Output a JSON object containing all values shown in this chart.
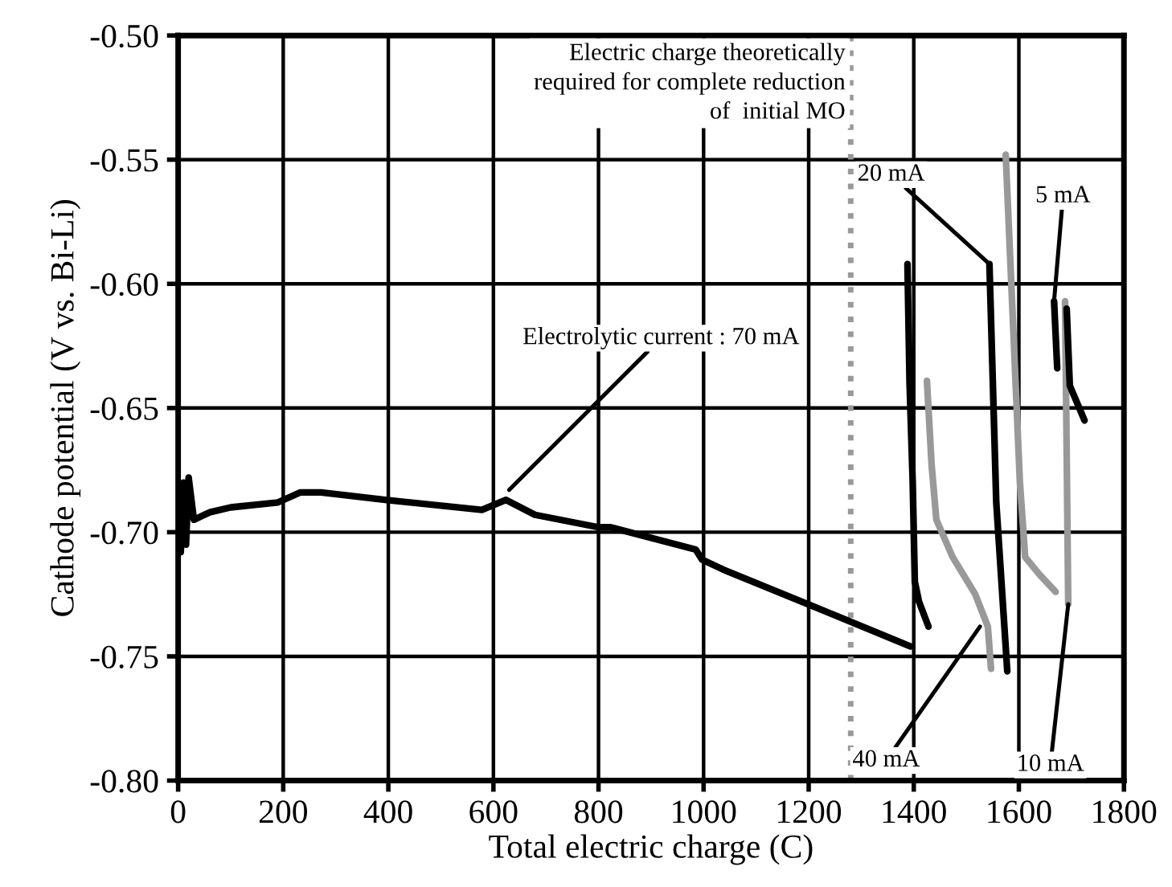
{
  "chart_data": {
    "type": "line",
    "xlabel": "Total electric charge (C)",
    "ylabel": "Cathode potential (V vs. Bi-Li)",
    "xlim": [
      0,
      1800
    ],
    "ylim": [
      -0.8,
      -0.5
    ],
    "xticks": [
      0,
      200,
      400,
      600,
      800,
      1000,
      1200,
      1400,
      1600,
      1800
    ],
    "yticks": [
      {
        "value": -0.8,
        "label": "-0.80"
      },
      {
        "value": -0.75,
        "label": "-0.75"
      },
      {
        "value": -0.7,
        "label": "-0.70"
      },
      {
        "value": -0.65,
        "label": "-0.65"
      },
      {
        "value": -0.6,
        "label": "-0.60"
      },
      {
        "value": -0.55,
        "label": "-0.55"
      },
      {
        "value": -0.5,
        "label": "-0.50"
      }
    ],
    "grid": true,
    "line_style": "solid",
    "marker": "none",
    "series": [
      {
        "color": "#000000",
        "x": [
          0,
          5,
          10,
          15,
          20,
          30,
          60,
          100,
          190,
          232,
          272,
          394,
          578,
          624,
          679,
          800,
          823,
          985,
          997,
          1037,
          1199,
          1394
        ],
        "values": [
          -0.69,
          -0.708,
          -0.68,
          -0.705,
          -0.678,
          -0.695,
          -0.692,
          -0.69,
          -0.688,
          -0.684,
          -0.684,
          -0.687,
          -0.691,
          -0.687,
          -0.693,
          -0.698,
          -0.698,
          -0.707,
          -0.711,
          -0.715,
          -0.729,
          -0.746
        ]
      },
      {
        "color": "#000000",
        "x": [
          1388,
          1392,
          1398,
          1402,
          1410,
          1428
        ],
        "values": [
          -0.592,
          -0.64,
          -0.68,
          -0.72,
          -0.728,
          -0.738
        ]
      },
      {
        "color": "#999999",
        "x": [
          1425,
          1434,
          1443,
          1474,
          1517,
          1541,
          1547
        ],
        "values": [
          -0.639,
          -0.673,
          -0.695,
          -0.71,
          -0.725,
          -0.738,
          -0.755
        ]
      },
      {
        "color": "#000000",
        "x": [
          1544,
          1557,
          1578
        ],
        "values": [
          -0.592,
          -0.688,
          -0.756
        ]
      },
      {
        "color": "#999999",
        "x": [
          1575,
          1602,
          1612,
          1639,
          1670,
          1680,
          1688,
          1694
        ],
        "values": [
          -0.548,
          -0.68,
          -0.71,
          -0.717,
          -0.724,
          null,
          -0.607,
          -0.729
        ]
      },
      {
        "color": "#000000",
        "x": [
          1667,
          1673,
          1682,
          1691,
          1697,
          1725
        ],
        "values": [
          -0.607,
          -0.634,
          null,
          -0.61,
          -0.641,
          -0.655
        ]
      }
    ],
    "ref_lines": [
      {
        "axis": "x",
        "value": 1280,
        "label": "Electric charge theoretically\nrequired for complete reduction\nof  initial MO",
        "color": "#999999",
        "line_style": "dotted"
      }
    ],
    "annotations": [
      {
        "text": "Electrolytic current : 70 mA",
        "x": 630,
        "y": -0.683
      },
      {
        "text": "20 mA",
        "x": 1544,
        "y": -0.592
      },
      {
        "text": "5 mA",
        "x": 1667,
        "y": -0.607
      },
      {
        "text": "40 mA",
        "x": 1526,
        "y": -0.738
      },
      {
        "text": "10 mA",
        "x": 1694,
        "y": -0.729
      }
    ]
  }
}
